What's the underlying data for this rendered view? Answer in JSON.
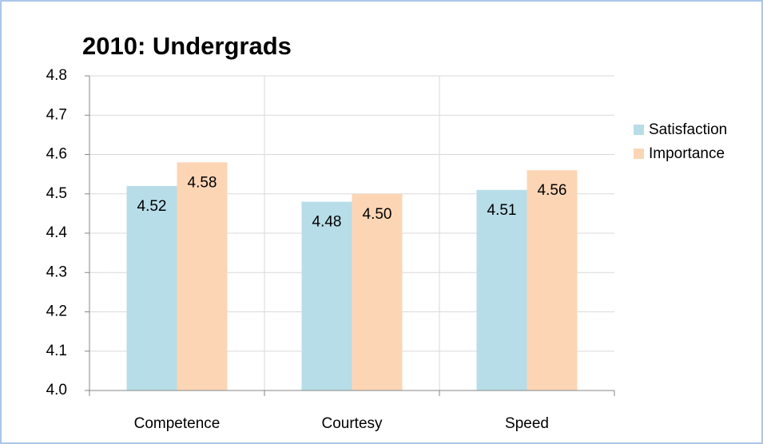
{
  "chart_data": {
    "type": "bar",
    "title": "2010: Undergrads",
    "categories": [
      "Competence",
      "Courtesy",
      "Speed"
    ],
    "series": [
      {
        "name": "Satisfaction",
        "color": "#b7dde8",
        "values": [
          4.52,
          4.48,
          4.51
        ],
        "value_labels": [
          "4.52",
          "4.48",
          "4.51"
        ]
      },
      {
        "name": "Importance",
        "color": "#fcd5b5",
        "values": [
          4.58,
          4.5,
          4.56
        ],
        "value_labels": [
          "4.58",
          "4.50",
          "4.56"
        ]
      }
    ],
    "ylim": [
      4.0,
      4.8
    ],
    "yticks": [
      {
        "value": 4,
        "label": "4.0"
      },
      4.1,
      4.2,
      4.3,
      4.4,
      4.5,
      4.6,
      4.7,
      4.8
    ],
    "grid": true,
    "legend": "right"
  }
}
